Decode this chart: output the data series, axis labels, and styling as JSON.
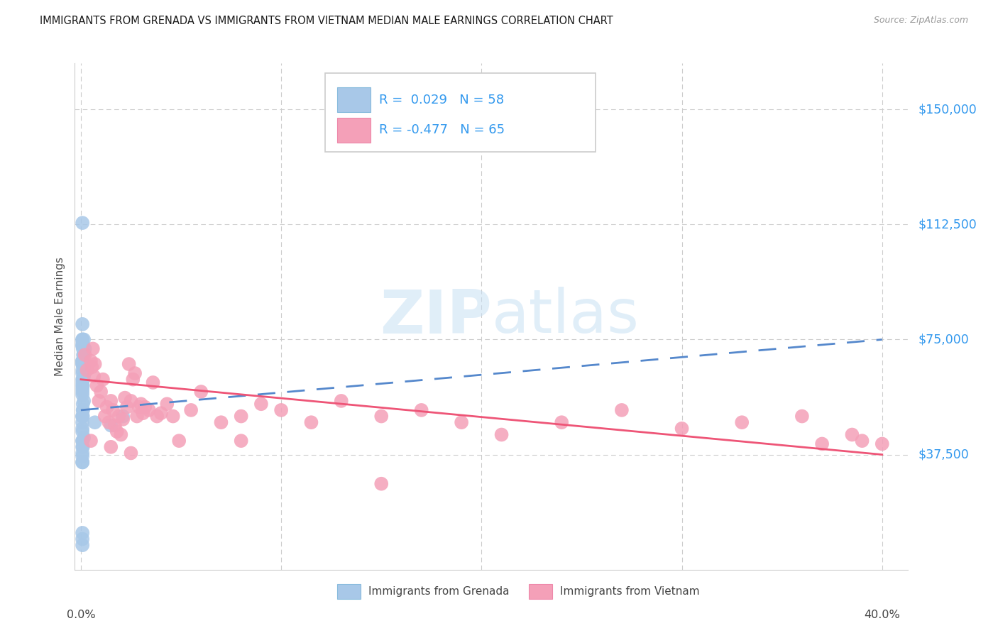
{
  "title": "IMMIGRANTS FROM GRENADA VS IMMIGRANTS FROM VIETNAM MEDIAN MALE EARNINGS CORRELATION CHART",
  "source": "Source: ZipAtlas.com",
  "ylabel": "Median Male Earnings",
  "ytick_labels": [
    "$150,000",
    "$112,500",
    "$75,000",
    "$37,500"
  ],
  "ytick_values": [
    150000,
    112500,
    75000,
    37500
  ],
  "ylim": [
    0,
    165000
  ],
  "xlim": [
    -0.003,
    0.413
  ],
  "R_grenada": "0.029",
  "N_grenada": "58",
  "R_vietnam": "-0.477",
  "N_vietnam": "65",
  "color_grenada": "#a8c8e8",
  "color_vietnam": "#f4a0b8",
  "color_grenada_line": "#5588cc",
  "color_vietnam_line": "#ee5577",
  "color_text_blue": "#3399ee",
  "color_grid": "#cccccc",
  "watermark_zip": "ZIP",
  "watermark_atlas": "atlas",
  "legend_label_grenada": "Immigrants from Grenada",
  "legend_label_vietnam": "Immigrants from Vietnam",
  "grenada_trend": [
    52000,
    75000
  ],
  "vietnam_trend": [
    62000,
    37500
  ],
  "trend_x": [
    0.0,
    0.4
  ],
  "grenada_x": [
    0.0008,
    0.001,
    0.0012,
    0.0008,
    0.0015,
    0.001,
    0.0008,
    0.0012,
    0.002,
    0.0008,
    0.001,
    0.0008,
    0.0015,
    0.0008,
    0.001,
    0.0008,
    0.0008,
    0.001,
    0.0008,
    0.0015,
    0.001,
    0.0008,
    0.0008,
    0.001,
    0.0008,
    0.0008,
    0.0015,
    0.001,
    0.0008,
    0.0008,
    0.0008,
    0.001,
    0.0008,
    0.0008,
    0.001,
    0.0008,
    0.0008,
    0.001,
    0.0008,
    0.0015,
    0.0008,
    0.001,
    0.0008,
    0.021,
    0.015,
    0.0008,
    0.007,
    0.0008,
    0.0008,
    0.0008,
    0.0008,
    0.0008,
    0.0008,
    0.0008,
    0.0008,
    0.0008,
    0.0008,
    0.0008
  ],
  "grenada_y": [
    67000,
    73000,
    70000,
    80000,
    75000,
    62000,
    65000,
    70000,
    72000,
    60000,
    50000,
    67000,
    55000,
    68000,
    62000,
    75000,
    73000,
    67000,
    74000,
    66000,
    72000,
    68000,
    73000,
    60000,
    68000,
    75000,
    63000,
    67000,
    64000,
    62000,
    59000,
    52000,
    61000,
    58000,
    54000,
    50000,
    57000,
    52000,
    48000,
    43000,
    45000,
    40000,
    38000,
    50000,
    47000,
    46000,
    48000,
    42000,
    42000,
    40000,
    10000,
    8000,
    12000,
    50000,
    113000,
    35000,
    37000,
    35000
  ],
  "vietnam_x": [
    0.002,
    0.003,
    0.005,
    0.0055,
    0.006,
    0.0065,
    0.007,
    0.008,
    0.009,
    0.01,
    0.011,
    0.012,
    0.013,
    0.014,
    0.015,
    0.016,
    0.017,
    0.018,
    0.019,
    0.02,
    0.021,
    0.022,
    0.023,
    0.024,
    0.025,
    0.026,
    0.027,
    0.028,
    0.029,
    0.03,
    0.031,
    0.032,
    0.034,
    0.036,
    0.038,
    0.04,
    0.043,
    0.046,
    0.049,
    0.055,
    0.06,
    0.07,
    0.08,
    0.09,
    0.1,
    0.115,
    0.13,
    0.15,
    0.17,
    0.19,
    0.21,
    0.24,
    0.27,
    0.3,
    0.33,
    0.36,
    0.37,
    0.385,
    0.39,
    0.4,
    0.005,
    0.015,
    0.025,
    0.08,
    0.15
  ],
  "vietnam_y": [
    70000,
    65000,
    68000,
    66000,
    72000,
    63000,
    67000,
    60000,
    55000,
    58000,
    62000,
    50000,
    53000,
    48000,
    55000,
    52000,
    47000,
    45000,
    50000,
    44000,
    49000,
    56000,
    53000,
    67000,
    55000,
    62000,
    64000,
    50000,
    53000,
    54000,
    51000,
    53000,
    52000,
    61000,
    50000,
    51000,
    54000,
    50000,
    42000,
    52000,
    58000,
    48000,
    50000,
    54000,
    52000,
    48000,
    55000,
    50000,
    52000,
    48000,
    44000,
    48000,
    52000,
    46000,
    48000,
    50000,
    41000,
    44000,
    42000,
    41000,
    42000,
    40000,
    38000,
    42000,
    28000
  ]
}
